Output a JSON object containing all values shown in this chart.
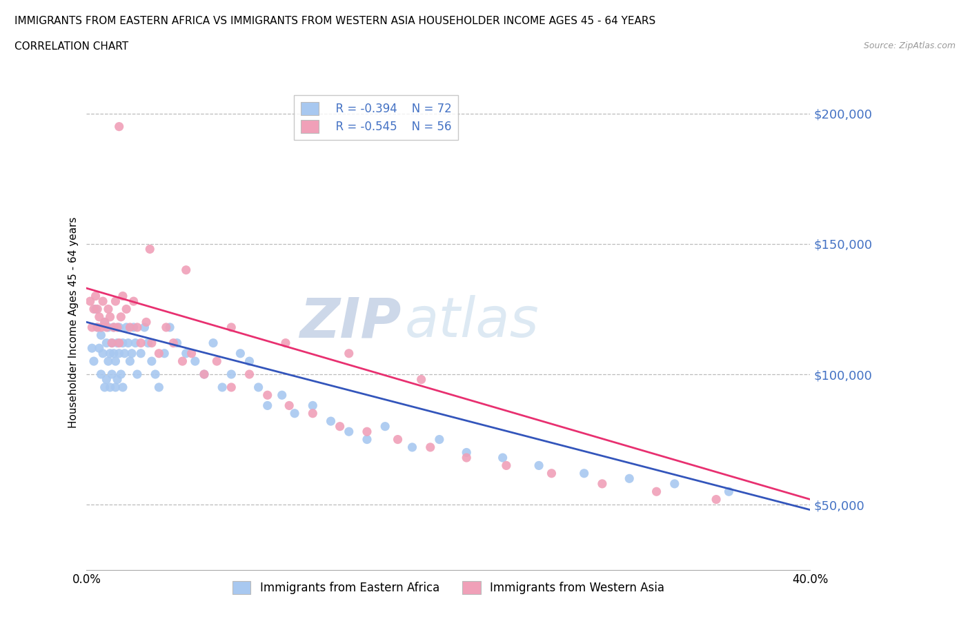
{
  "title_line1": "IMMIGRANTS FROM EASTERN AFRICA VS IMMIGRANTS FROM WESTERN ASIA HOUSEHOLDER INCOME AGES 45 - 64 YEARS",
  "title_line2": "CORRELATION CHART",
  "source_text": "Source: ZipAtlas.com",
  "ylabel": "Householder Income Ages 45 - 64 years",
  "xlim": [
    0.0,
    0.4
  ],
  "ylim": [
    25000,
    215000
  ],
  "yticks": [
    50000,
    100000,
    150000,
    200000
  ],
  "ytick_labels": [
    "$50,000",
    "$100,000",
    "$150,000",
    "$200,000"
  ],
  "xticks": [
    0.0,
    0.05,
    0.1,
    0.15,
    0.2,
    0.25,
    0.3,
    0.35,
    0.4
  ],
  "xtick_labels": [
    "0.0%",
    "",
    "",
    "",
    "",
    "",
    "",
    "",
    "40.0%"
  ],
  "series1_color": "#A8C8F0",
  "series2_color": "#F0A0B8",
  "line1_color": "#3355BB",
  "line2_color": "#E83070",
  "legend_r1": "R = -0.394",
  "legend_n1": "N = 72",
  "legend_r2": "R = -0.545",
  "legend_n2": "N = 56",
  "legend_label1": "Immigrants from Eastern Africa",
  "legend_label2": "Immigrants from Western Asia",
  "watermark_part1": "ZIP",
  "watermark_part2": "atlas",
  "background_color": "#ffffff",
  "grid_color": "#BBBBBB",
  "tick_label_color": "#4472C4",
  "series1_x": [
    0.003,
    0.004,
    0.005,
    0.006,
    0.007,
    0.008,
    0.008,
    0.009,
    0.01,
    0.01,
    0.011,
    0.011,
    0.012,
    0.012,
    0.013,
    0.013,
    0.014,
    0.014,
    0.015,
    0.015,
    0.016,
    0.016,
    0.017,
    0.017,
    0.018,
    0.018,
    0.019,
    0.02,
    0.02,
    0.021,
    0.022,
    0.023,
    0.024,
    0.025,
    0.026,
    0.027,
    0.028,
    0.03,
    0.032,
    0.034,
    0.036,
    0.038,
    0.04,
    0.043,
    0.046,
    0.05,
    0.055,
    0.06,
    0.065,
    0.07,
    0.075,
    0.08,
    0.085,
    0.09,
    0.095,
    0.1,
    0.108,
    0.115,
    0.125,
    0.135,
    0.145,
    0.155,
    0.165,
    0.18,
    0.195,
    0.21,
    0.23,
    0.25,
    0.275,
    0.3,
    0.325,
    0.355
  ],
  "series1_y": [
    110000,
    105000,
    125000,
    118000,
    110000,
    100000,
    115000,
    108000,
    120000,
    95000,
    112000,
    98000,
    105000,
    118000,
    108000,
    95000,
    112000,
    100000,
    108000,
    118000,
    105000,
    95000,
    112000,
    98000,
    108000,
    118000,
    100000,
    112000,
    95000,
    108000,
    118000,
    112000,
    105000,
    108000,
    118000,
    112000,
    100000,
    108000,
    118000,
    112000,
    105000,
    100000,
    95000,
    108000,
    118000,
    112000,
    108000,
    105000,
    100000,
    112000,
    95000,
    100000,
    108000,
    105000,
    95000,
    88000,
    92000,
    85000,
    88000,
    82000,
    78000,
    75000,
    80000,
    72000,
    75000,
    70000,
    68000,
    65000,
    62000,
    60000,
    58000,
    55000
  ],
  "series2_x": [
    0.002,
    0.003,
    0.004,
    0.005,
    0.006,
    0.006,
    0.007,
    0.008,
    0.009,
    0.01,
    0.011,
    0.012,
    0.013,
    0.014,
    0.015,
    0.016,
    0.017,
    0.018,
    0.019,
    0.02,
    0.022,
    0.024,
    0.026,
    0.028,
    0.03,
    0.033,
    0.036,
    0.04,
    0.044,
    0.048,
    0.053,
    0.058,
    0.065,
    0.072,
    0.08,
    0.09,
    0.1,
    0.112,
    0.125,
    0.14,
    0.155,
    0.172,
    0.19,
    0.21,
    0.232,
    0.257,
    0.285,
    0.315,
    0.348,
    0.018,
    0.035,
    0.055,
    0.08,
    0.11,
    0.145,
    0.185
  ],
  "series2_y": [
    128000,
    118000,
    125000,
    130000,
    118000,
    125000,
    122000,
    118000,
    128000,
    120000,
    118000,
    125000,
    122000,
    112000,
    118000,
    128000,
    118000,
    112000,
    122000,
    130000,
    125000,
    118000,
    128000,
    118000,
    112000,
    120000,
    112000,
    108000,
    118000,
    112000,
    105000,
    108000,
    100000,
    105000,
    95000,
    100000,
    92000,
    88000,
    85000,
    80000,
    78000,
    75000,
    72000,
    68000,
    65000,
    62000,
    58000,
    55000,
    52000,
    195000,
    148000,
    140000,
    118000,
    112000,
    108000,
    98000
  ]
}
